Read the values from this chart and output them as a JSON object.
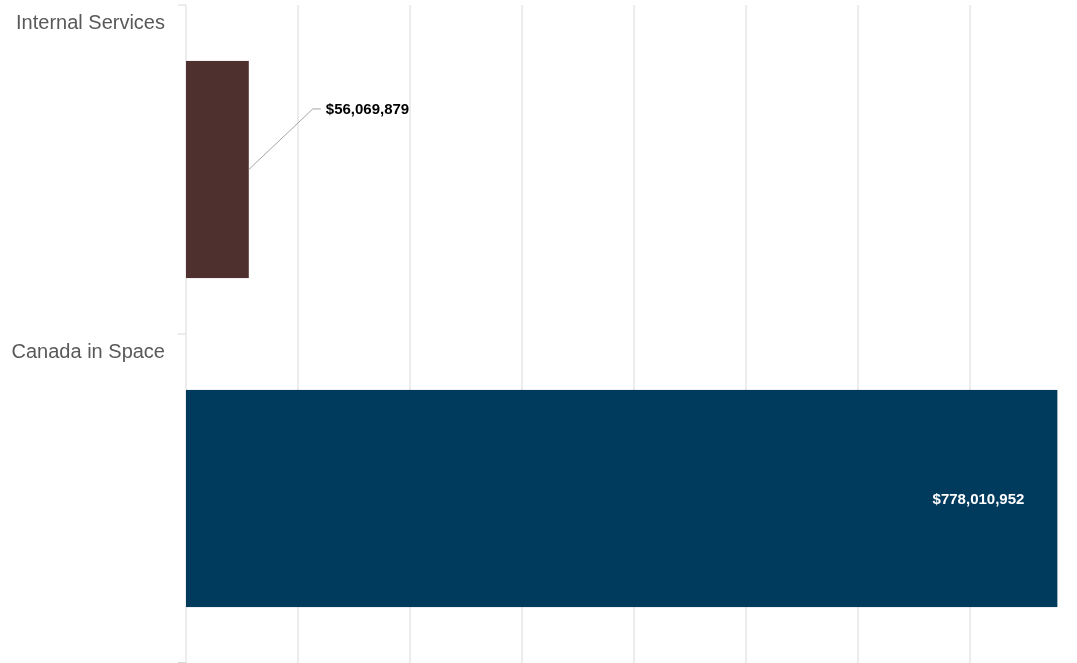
{
  "chart_data": {
    "type": "bar",
    "orientation": "horizontal",
    "categories": [
      "Internal Services",
      "Canada in Space"
    ],
    "values": [
      56069879,
      778010952
    ],
    "colors": [
      "#4e302e",
      "#003a5d"
    ],
    "value_labels": [
      "$56,069,879",
      "$778,010,952"
    ],
    "xlim": [
      0,
      800000000
    ],
    "xticks": [
      {
        "value": 0,
        "label": null
      },
      {
        "value": 100000000,
        "label": null
      },
      {
        "value": 200000000,
        "label": null
      },
      {
        "value": 300000000,
        "label": null
      },
      {
        "value": 400000000,
        "label": null
      },
      {
        "value": 500000000,
        "label": null
      },
      {
        "value": 600000000,
        "label": null
      },
      {
        "value": 700000000,
        "label": null
      }
    ],
    "grid": "x"
  }
}
